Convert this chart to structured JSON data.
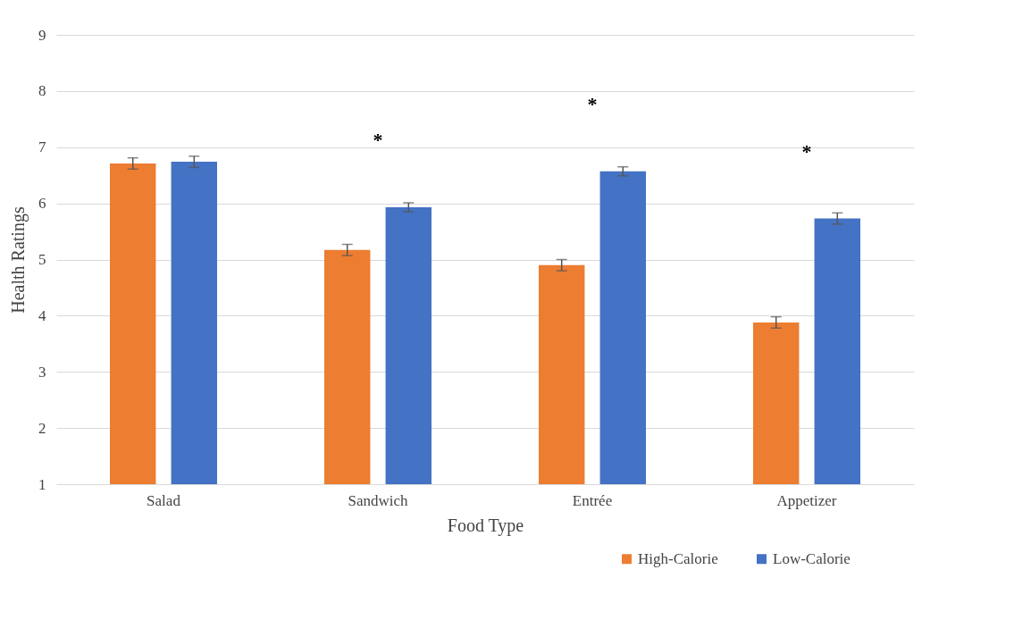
{
  "chart_data": {
    "type": "bar",
    "xlabel": "Food Type",
    "ylabel": "Health Ratings",
    "categories": [
      "Salad",
      "Sandwich",
      "Entrée",
      "Appetizer"
    ],
    "series": [
      {
        "name": "High-Calorie",
        "color": "#ed7d31",
        "values": [
          6.71,
          5.17,
          4.9,
          3.88
        ],
        "errors": [
          0.1,
          0.1,
          0.1,
          0.1
        ]
      },
      {
        "name": "Low-Calorie",
        "color": "#4472c4",
        "values": [
          6.74,
          5.93,
          6.57,
          5.73
        ],
        "errors": [
          0.1,
          0.08,
          0.08,
          0.1
        ]
      }
    ],
    "ylim": [
      1,
      9
    ],
    "yticks": [
      1,
      2,
      3,
      4,
      5,
      6,
      7,
      8,
      9
    ],
    "grid": "y",
    "legend": "bottom right",
    "annotations": [
      "*",
      "*",
      "*"
    ]
  }
}
